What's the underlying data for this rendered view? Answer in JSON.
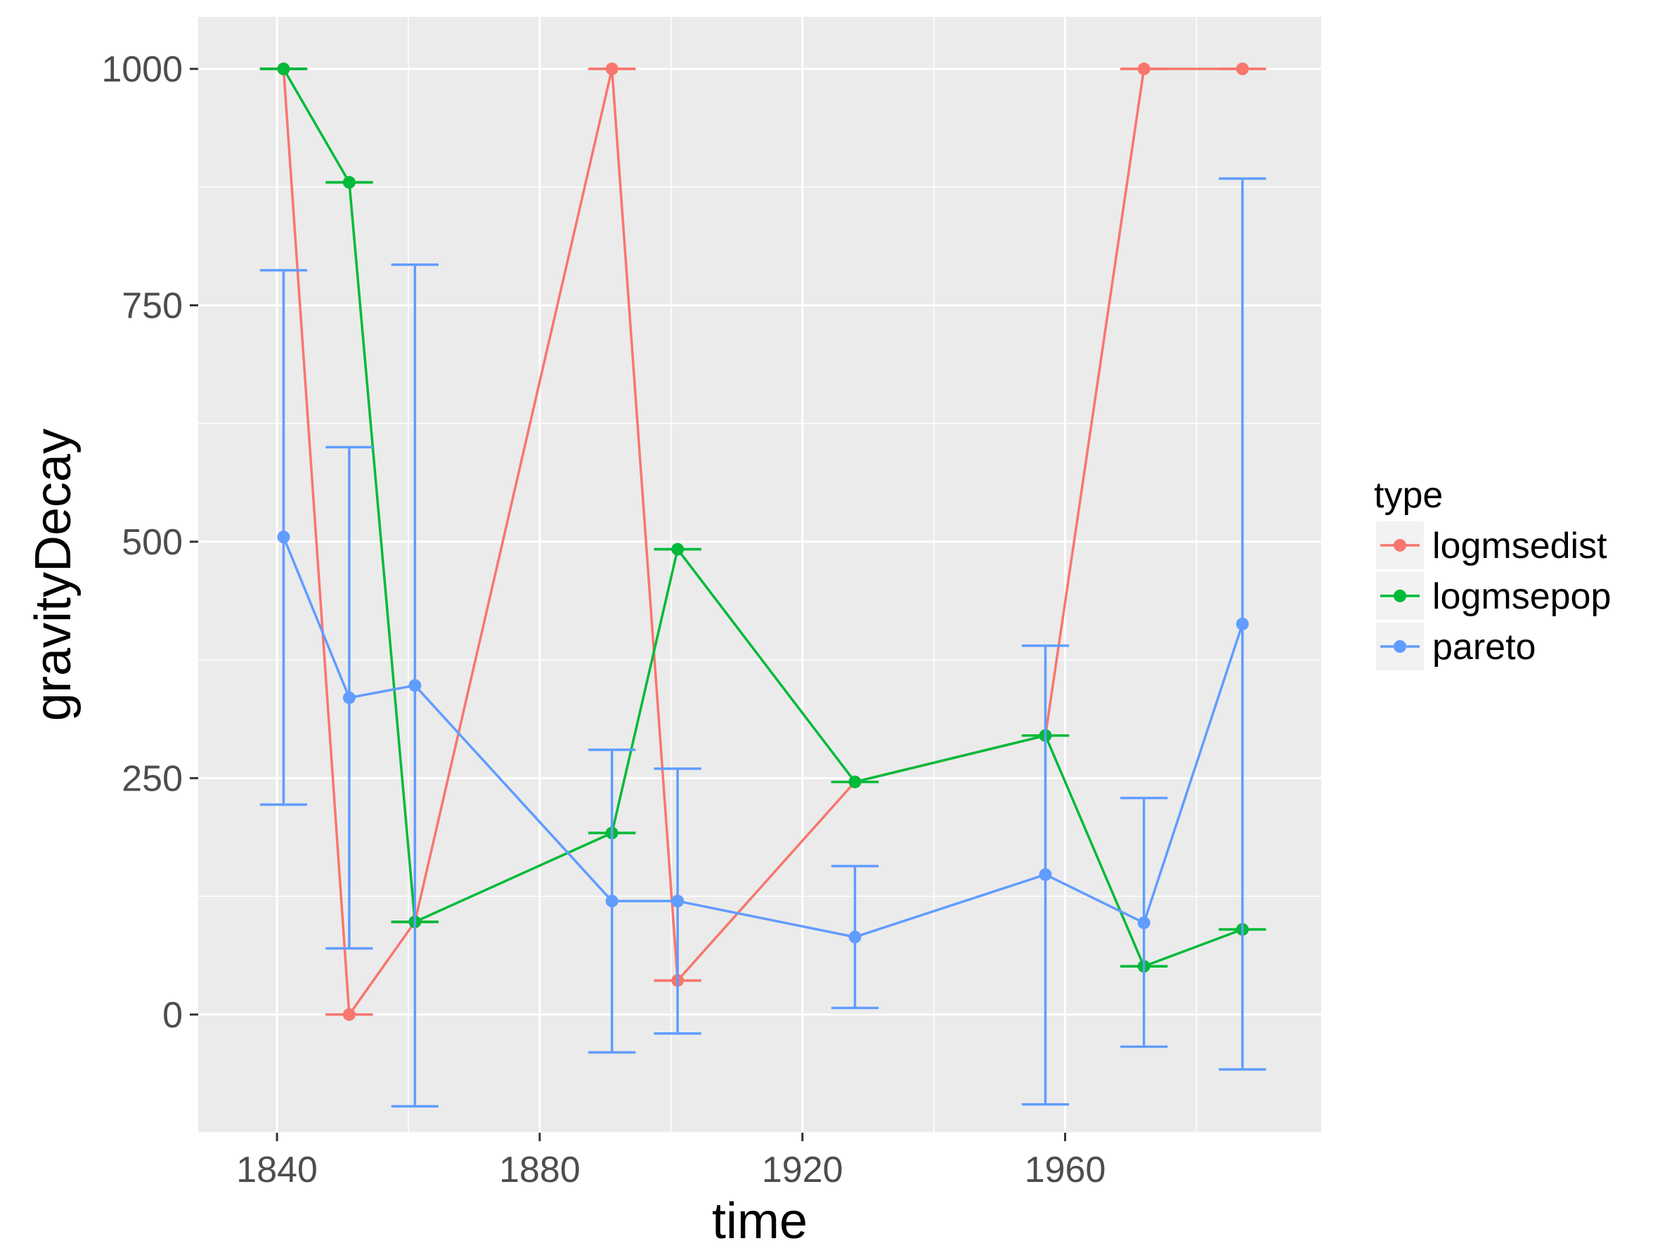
{
  "chart_data": {
    "type": "line",
    "xlabel": "time",
    "ylabel": "gravityDecay",
    "xlim": [
      1828,
      1999
    ],
    "ylim": [
      -125,
      1055
    ],
    "x_ticks": [
      1840,
      1880,
      1920,
      1960
    ],
    "y_ticks": [
      0,
      250,
      500,
      750,
      1000
    ],
    "grid": true,
    "error_bars": true,
    "legend": {
      "title": "type",
      "position": "right"
    },
    "series": [
      {
        "name": "logmsedist",
        "color": "#F8766D",
        "points": [
          {
            "x": 1841,
            "y": 1000,
            "ymin": 1000,
            "ymax": 1000
          },
          {
            "x": 1851,
            "y": 0,
            "ymin": 0,
            "ymax": 0
          },
          {
            "x": 1861,
            "y": 98,
            "ymin": 98,
            "ymax": 98
          },
          {
            "x": 1891,
            "y": 1000,
            "ymin": 1000,
            "ymax": 1000
          },
          {
            "x": 1901,
            "y": 36,
            "ymin": 36,
            "ymax": 36
          },
          {
            "x": 1928,
            "y": 246,
            "ymin": 246,
            "ymax": 246
          },
          {
            "x": 1957,
            "y": 295,
            "ymin": 295,
            "ymax": 295
          },
          {
            "x": 1972,
            "y": 1000,
            "ymin": 1000,
            "ymax": 1000
          },
          {
            "x": 1987,
            "y": 1000,
            "ymin": 1000,
            "ymax": 1000
          }
        ]
      },
      {
        "name": "logmsepop",
        "color": "#00BA38",
        "points": [
          {
            "x": 1841,
            "y": 1000,
            "ymin": 1000,
            "ymax": 1000
          },
          {
            "x": 1851,
            "y": 880,
            "ymin": 880,
            "ymax": 880
          },
          {
            "x": 1861,
            "y": 98,
            "ymin": 98,
            "ymax": 98
          },
          {
            "x": 1891,
            "y": 192,
            "ymin": 192,
            "ymax": 192
          },
          {
            "x": 1901,
            "y": 492,
            "ymin": 492,
            "ymax": 492
          },
          {
            "x": 1928,
            "y": 246,
            "ymin": 246,
            "ymax": 246
          },
          {
            "x": 1957,
            "y": 295,
            "ymin": 295,
            "ymax": 295
          },
          {
            "x": 1972,
            "y": 51,
            "ymin": 51,
            "ymax": 51
          },
          {
            "x": 1987,
            "y": 90,
            "ymin": 90,
            "ymax": 90
          }
        ]
      },
      {
        "name": "pareto",
        "color": "#619CFF",
        "points": [
          {
            "x": 1841,
            "y": 505,
            "ymin": 222,
            "ymax": 787
          },
          {
            "x": 1851,
            "y": 335,
            "ymin": 70,
            "ymax": 600
          },
          {
            "x": 1861,
            "y": 348,
            "ymin": -97,
            "ymax": 793
          },
          {
            "x": 1891,
            "y": 120,
            "ymin": -40,
            "ymax": 280
          },
          {
            "x": 1901,
            "y": 120,
            "ymin": -20,
            "ymax": 260
          },
          {
            "x": 1928,
            "y": 82,
            "ymin": 7,
            "ymax": 157
          },
          {
            "x": 1957,
            "y": 148,
            "ymin": -95,
            "ymax": 390
          },
          {
            "x": 1972,
            "y": 97,
            "ymin": -34,
            "ymax": 229
          },
          {
            "x": 1987,
            "y": 413,
            "ymin": -58,
            "ymax": 884
          }
        ]
      }
    ]
  }
}
